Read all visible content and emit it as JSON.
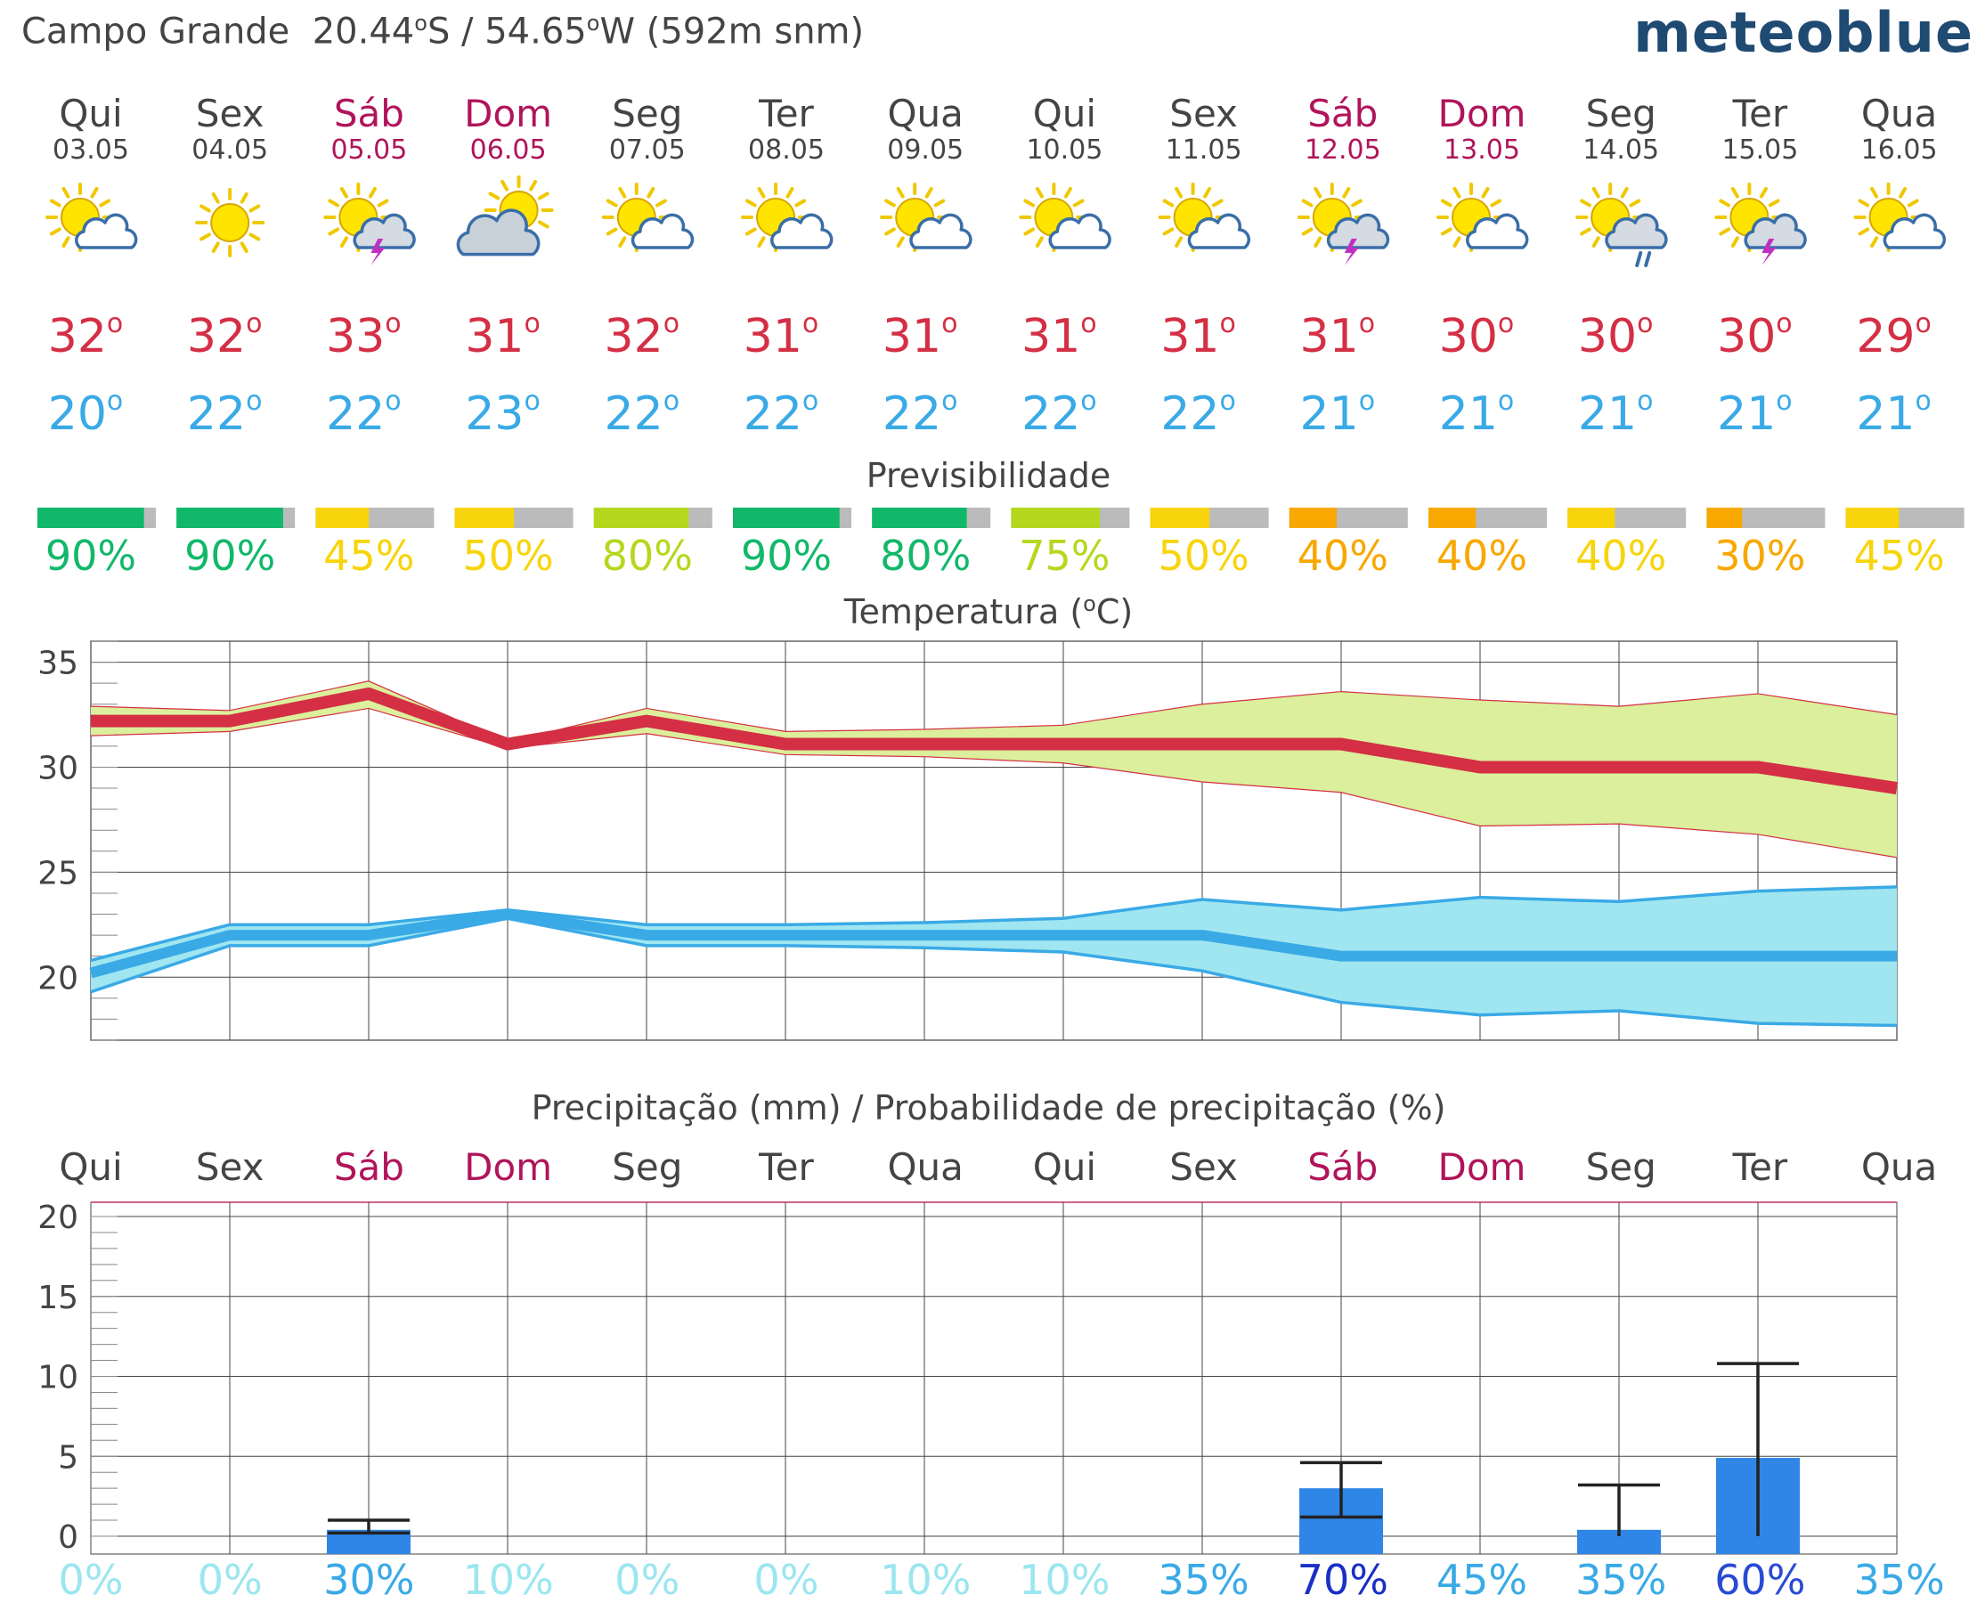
{
  "header": {
    "location": "Campo Grande",
    "lat_value": "20.44",
    "lat_hemi": "S",
    "lon_value": "54.65",
    "lon_hemi": "W",
    "elevation": "(592m snm)",
    "brand": "meteoblue"
  },
  "colors": {
    "weekday": "#444444",
    "weekend": "#b0145a",
    "tmax": "#d42f44",
    "tmin": "#3aaae6",
    "tmax_band": "#dbef9c",
    "tmin_band": "#a0e6f0",
    "precip_bar": "#2f86e6"
  },
  "days": [
    {
      "name": "Qui",
      "date": "03.05",
      "weekend": false,
      "icon": "sun-cloud-icon",
      "tmax": "32",
      "tmin": "20",
      "pred": 90,
      "pred_label": "90%",
      "pred_color": "#12b86a",
      "precip_prob": "0%",
      "prob_color": "#9be6ef"
    },
    {
      "name": "Sex",
      "date": "04.05",
      "weekend": false,
      "icon": "sun-icon",
      "tmax": "32",
      "tmin": "22",
      "pred": 90,
      "pred_label": "90%",
      "pred_color": "#12b86a",
      "precip_prob": "0%",
      "prob_color": "#9be6ef"
    },
    {
      "name": "Sáb",
      "date": "05.05",
      "weekend": true,
      "icon": "sun-thunder-icon",
      "tmax": "33",
      "tmin": "22",
      "pred": 45,
      "pred_label": "45%",
      "pred_color": "#f8d40c",
      "precip_prob": "30%",
      "prob_color": "#3aaae6"
    },
    {
      "name": "Dom",
      "date": "06.05",
      "weekend": true,
      "icon": "cloud-sun-icon",
      "tmax": "31",
      "tmin": "23",
      "pred": 50,
      "pred_label": "50%",
      "pred_color": "#f8d40c",
      "precip_prob": "10%",
      "prob_color": "#9be6ef"
    },
    {
      "name": "Seg",
      "date": "07.05",
      "weekend": false,
      "icon": "sun-cloud-icon",
      "tmax": "32",
      "tmin": "22",
      "pred": 80,
      "pred_label": "80%",
      "pred_color": "#b5d81e",
      "precip_prob": "0%",
      "prob_color": "#9be6ef"
    },
    {
      "name": "Ter",
      "date": "08.05",
      "weekend": false,
      "icon": "sun-cloud-icon",
      "tmax": "31",
      "tmin": "22",
      "pred": 90,
      "pred_label": "90%",
      "pred_color": "#12b86a",
      "precip_prob": "0%",
      "prob_color": "#9be6ef"
    },
    {
      "name": "Qua",
      "date": "09.05",
      "weekend": false,
      "icon": "sun-cloud-icon",
      "tmax": "31",
      "tmin": "22",
      "pred": 80,
      "pred_label": "80%",
      "pred_color": "#12b86a",
      "precip_prob": "10%",
      "prob_color": "#9be6ef"
    },
    {
      "name": "Qui",
      "date": "10.05",
      "weekend": false,
      "icon": "sun-cloud-icon",
      "tmax": "31",
      "tmin": "22",
      "pred": 75,
      "pred_label": "75%",
      "pred_color": "#b5d81e",
      "precip_prob": "10%",
      "prob_color": "#9be6ef"
    },
    {
      "name": "Sex",
      "date": "11.05",
      "weekend": false,
      "icon": "sun-cloud-icon",
      "tmax": "31",
      "tmin": "22",
      "pred": 50,
      "pred_label": "50%",
      "pred_color": "#f8d40c",
      "precip_prob": "35%",
      "prob_color": "#3aaae6"
    },
    {
      "name": "Sáb",
      "date": "12.05",
      "weekend": true,
      "icon": "sun-thunder-icon",
      "tmax": "31",
      "tmin": "21",
      "pred": 40,
      "pred_label": "40%",
      "pred_color": "#f8a800",
      "precip_prob": "70%",
      "prob_color": "#1a2fc4"
    },
    {
      "name": "Dom",
      "date": "13.05",
      "weekend": true,
      "icon": "sun-cloud-icon",
      "tmax": "30",
      "tmin": "21",
      "pred": 40,
      "pred_label": "40%",
      "pred_color": "#f8a800",
      "precip_prob": "45%",
      "prob_color": "#3aaae6"
    },
    {
      "name": "Seg",
      "date": "14.05",
      "weekend": false,
      "icon": "sun-rain-icon",
      "tmax": "30",
      "tmin": "21",
      "pred": 40,
      "pred_label": "40%",
      "pred_color": "#f8d40c",
      "precip_prob": "35%",
      "prob_color": "#3aaae6"
    },
    {
      "name": "Ter",
      "date": "15.05",
      "weekend": false,
      "icon": "sun-thunder-icon",
      "tmax": "30",
      "tmin": "21",
      "pred": 30,
      "pred_label": "30%",
      "pred_color": "#f8a800",
      "precip_prob": "60%",
      "prob_color": "#2a4ad4"
    },
    {
      "name": "Qua",
      "date": "16.05",
      "weekend": false,
      "icon": "sun-cloud-icon",
      "tmax": "29",
      "tmin": "21",
      "pred": 45,
      "pred_label": "45%",
      "pred_color": "#f8d40c",
      "precip_prob": "35%",
      "prob_color": "#3aaae6"
    }
  ],
  "predictability": {
    "title": "Previsibilidade"
  },
  "chart_data": [
    {
      "type": "area",
      "title": "Temperatura (°C)",
      "ylim": [
        17,
        36
      ],
      "yticks": [
        "20",
        "25",
        "30",
        "35"
      ],
      "x": [
        "03.05",
        "04.05",
        "05.05",
        "06.05",
        "07.05",
        "08.05",
        "09.05",
        "10.05",
        "11.05",
        "12.05",
        "13.05",
        "14.05",
        "15.05",
        "16.05"
      ],
      "series": [
        {
          "values": [
            32.2,
            32.2,
            33.5,
            31.1,
            32.2,
            31.1,
            31.1,
            31.1,
            31.1,
            31.1,
            30.0,
            30.0,
            30.0,
            29.0
          ]
        },
        {
          "values": [
            32.9,
            32.7,
            34.1,
            31.2,
            32.8,
            31.7,
            31.8,
            32.0,
            33.0,
            33.6,
            33.2,
            32.9,
            33.5,
            32.5
          ]
        },
        {
          "values": [
            31.5,
            31.7,
            32.8,
            30.9,
            31.6,
            30.6,
            30.5,
            30.2,
            29.3,
            28.8,
            27.2,
            27.3,
            26.8,
            25.7
          ]
        },
        {
          "values": [
            20.2,
            22.0,
            22.0,
            23.0,
            22.0,
            22.0,
            22.0,
            22.0,
            22.0,
            21.0,
            21.0,
            21.0,
            21.0,
            21.0
          ]
        },
        {
          "values": [
            20.8,
            22.5,
            22.5,
            23.2,
            22.5,
            22.5,
            22.6,
            22.8,
            23.7,
            23.2,
            23.8,
            23.6,
            24.1,
            24.3
          ]
        },
        {
          "values": [
            19.3,
            21.5,
            21.5,
            22.8,
            21.5,
            21.5,
            21.4,
            21.2,
            20.3,
            18.8,
            18.2,
            18.4,
            17.8,
            17.7
          ]
        }
      ]
    },
    {
      "type": "bar",
      "title": "Precipitação (mm) / Probabilidade de precipitação (%)",
      "ylim": [
        0,
        20
      ],
      "yticks": [
        "0",
        "5",
        "10",
        "15",
        "20"
      ],
      "categories": [
        "03.05",
        "04.05",
        "05.05",
        "06.05",
        "07.05",
        "08.05",
        "09.05",
        "10.05",
        "11.05",
        "12.05",
        "13.05",
        "14.05",
        "15.05",
        "16.05"
      ],
      "values": [
        0,
        0,
        0.4,
        0,
        0,
        0,
        0,
        0,
        0,
        3.0,
        0,
        0.4,
        4.9,
        0
      ],
      "range_low": [
        null,
        null,
        0.2,
        null,
        null,
        null,
        null,
        null,
        null,
        1.2,
        null,
        0,
        0,
        null
      ],
      "range_high": [
        null,
        null,
        1.0,
        null,
        null,
        null,
        null,
        null,
        null,
        4.6,
        null,
        3.2,
        10.8,
        null
      ]
    }
  ]
}
